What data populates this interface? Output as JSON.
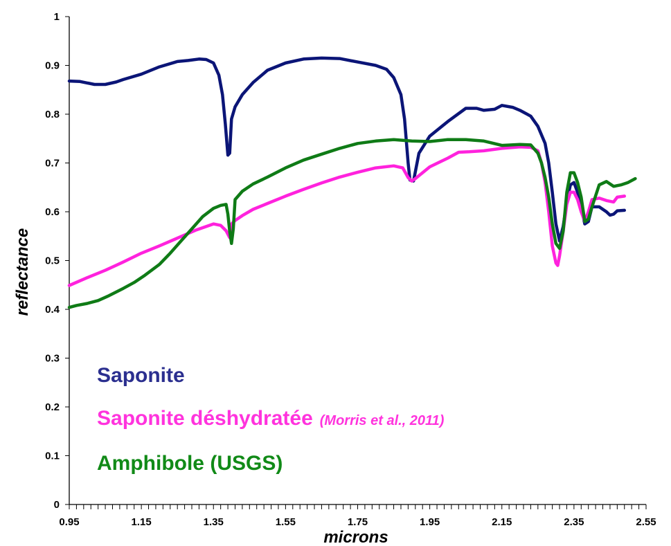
{
  "chart_data": {
    "type": "line",
    "title": "",
    "xlabel": "microns",
    "ylabel": "reflectance",
    "xlim": [
      0.95,
      2.55
    ],
    "ylim": [
      0,
      1
    ],
    "x_ticks": [
      0.95,
      1.15,
      1.35,
      1.55,
      1.75,
      1.95,
      2.15,
      2.35,
      2.55
    ],
    "x_tick_labels": [
      "0.95",
      "1.15",
      "1.35",
      "1.55",
      "1.75",
      "1.95",
      "2.15",
      "2.35",
      "2.55"
    ],
    "x_minor_step": 0.02,
    "y_ticks": [
      0,
      0.1,
      0.2,
      0.3,
      0.4,
      0.5,
      0.6,
      0.7,
      0.8,
      0.9,
      1
    ],
    "y_tick_labels": [
      "0",
      "0.1",
      "0.2",
      "0.3",
      "0.4",
      "0.5",
      "0.6",
      "0.7",
      "0.8",
      "0.9",
      "1"
    ],
    "grid": false,
    "legend_position": "bottom-left",
    "series": [
      {
        "name": "Saponite",
        "color": "#0b1577",
        "points": [
          [
            0.95,
            0.868
          ],
          [
            0.98,
            0.867
          ],
          [
            1.0,
            0.864
          ],
          [
            1.02,
            0.861
          ],
          [
            1.05,
            0.861
          ],
          [
            1.08,
            0.866
          ],
          [
            1.1,
            0.871
          ],
          [
            1.15,
            0.882
          ],
          [
            1.2,
            0.897
          ],
          [
            1.25,
            0.908
          ],
          [
            1.28,
            0.91
          ],
          [
            1.31,
            0.913
          ],
          [
            1.33,
            0.912
          ],
          [
            1.35,
            0.905
          ],
          [
            1.365,
            0.88
          ],
          [
            1.375,
            0.84
          ],
          [
            1.383,
            0.78
          ],
          [
            1.39,
            0.716
          ],
          [
            1.395,
            0.72
          ],
          [
            1.4,
            0.79
          ],
          [
            1.41,
            0.815
          ],
          [
            1.43,
            0.84
          ],
          [
            1.46,
            0.865
          ],
          [
            1.5,
            0.89
          ],
          [
            1.55,
            0.905
          ],
          [
            1.6,
            0.913
          ],
          [
            1.65,
            0.915
          ],
          [
            1.7,
            0.914
          ],
          [
            1.75,
            0.907
          ],
          [
            1.8,
            0.9
          ],
          [
            1.83,
            0.892
          ],
          [
            1.85,
            0.875
          ],
          [
            1.87,
            0.84
          ],
          [
            1.88,
            0.79
          ],
          [
            1.89,
            0.7
          ],
          [
            1.895,
            0.665
          ],
          [
            1.905,
            0.663
          ],
          [
            1.92,
            0.72
          ],
          [
            1.95,
            0.755
          ],
          [
            2.0,
            0.785
          ],
          [
            2.05,
            0.812
          ],
          [
            2.08,
            0.812
          ],
          [
            2.1,
            0.808
          ],
          [
            2.13,
            0.81
          ],
          [
            2.15,
            0.818
          ],
          [
            2.18,
            0.814
          ],
          [
            2.2,
            0.808
          ],
          [
            2.23,
            0.796
          ],
          [
            2.25,
            0.775
          ],
          [
            2.27,
            0.74
          ],
          [
            2.28,
            0.7
          ],
          [
            2.29,
            0.64
          ],
          [
            2.3,
            0.575
          ],
          [
            2.31,
            0.54
          ],
          [
            2.32,
            0.57
          ],
          [
            2.33,
            0.62
          ],
          [
            2.34,
            0.655
          ],
          [
            2.35,
            0.66
          ],
          [
            2.36,
            0.64
          ],
          [
            2.37,
            0.61
          ],
          [
            2.38,
            0.575
          ],
          [
            2.39,
            0.58
          ],
          [
            2.4,
            0.61
          ],
          [
            2.42,
            0.61
          ],
          [
            2.44,
            0.6
          ],
          [
            2.45,
            0.593
          ],
          [
            2.46,
            0.595
          ],
          [
            2.47,
            0.602
          ],
          [
            2.49,
            0.603
          ]
        ]
      },
      {
        "name": "Saponite déshydratée",
        "color": "#ff22dd",
        "points": [
          [
            0.95,
            0.449
          ],
          [
            1.0,
            0.465
          ],
          [
            1.05,
            0.48
          ],
          [
            1.1,
            0.497
          ],
          [
            1.15,
            0.515
          ],
          [
            1.2,
            0.53
          ],
          [
            1.25,
            0.546
          ],
          [
            1.3,
            0.562
          ],
          [
            1.35,
            0.575
          ],
          [
            1.37,
            0.572
          ],
          [
            1.385,
            0.561
          ],
          [
            1.395,
            0.547
          ],
          [
            1.4,
            0.575
          ],
          [
            1.41,
            0.582
          ],
          [
            1.43,
            0.592
          ],
          [
            1.46,
            0.605
          ],
          [
            1.5,
            0.617
          ],
          [
            1.55,
            0.632
          ],
          [
            1.6,
            0.646
          ],
          [
            1.65,
            0.659
          ],
          [
            1.7,
            0.671
          ],
          [
            1.75,
            0.681
          ],
          [
            1.8,
            0.69
          ],
          [
            1.85,
            0.694
          ],
          [
            1.875,
            0.69
          ],
          [
            1.89,
            0.67
          ],
          [
            1.9,
            0.663
          ],
          [
            1.91,
            0.668
          ],
          [
            1.93,
            0.68
          ],
          [
            1.95,
            0.692
          ],
          [
            2.0,
            0.71
          ],
          [
            2.03,
            0.722
          ],
          [
            2.06,
            0.723
          ],
          [
            2.1,
            0.725
          ],
          [
            2.15,
            0.73
          ],
          [
            2.2,
            0.733
          ],
          [
            2.23,
            0.732
          ],
          [
            2.25,
            0.725
          ],
          [
            2.26,
            0.7
          ],
          [
            2.27,
            0.66
          ],
          [
            2.28,
            0.6
          ],
          [
            2.29,
            0.53
          ],
          [
            2.3,
            0.495
          ],
          [
            2.305,
            0.49
          ],
          [
            2.31,
            0.51
          ],
          [
            2.32,
            0.56
          ],
          [
            2.33,
            0.615
          ],
          [
            2.34,
            0.64
          ],
          [
            2.35,
            0.64
          ],
          [
            2.36,
            0.625
          ],
          [
            2.37,
            0.6
          ],
          [
            2.38,
            0.58
          ],
          [
            2.39,
            0.6
          ],
          [
            2.4,
            0.625
          ],
          [
            2.42,
            0.628
          ],
          [
            2.44,
            0.623
          ],
          [
            2.46,
            0.62
          ],
          [
            2.47,
            0.63
          ],
          [
            2.49,
            0.632
          ]
        ]
      },
      {
        "name": "Amphibole (USGS)",
        "color": "#0f7b16",
        "points": [
          [
            0.95,
            0.404
          ],
          [
            0.97,
            0.408
          ],
          [
            1.0,
            0.412
          ],
          [
            1.03,
            0.418
          ],
          [
            1.06,
            0.428
          ],
          [
            1.1,
            0.443
          ],
          [
            1.13,
            0.455
          ],
          [
            1.16,
            0.47
          ],
          [
            1.2,
            0.492
          ],
          [
            1.23,
            0.515
          ],
          [
            1.26,
            0.54
          ],
          [
            1.29,
            0.565
          ],
          [
            1.32,
            0.59
          ],
          [
            1.35,
            0.607
          ],
          [
            1.37,
            0.613
          ],
          [
            1.385,
            0.615
          ],
          [
            1.39,
            0.595
          ],
          [
            1.395,
            0.56
          ],
          [
            1.4,
            0.535
          ],
          [
            1.405,
            0.565
          ],
          [
            1.41,
            0.625
          ],
          [
            1.43,
            0.642
          ],
          [
            1.46,
            0.657
          ],
          [
            1.5,
            0.671
          ],
          [
            1.55,
            0.69
          ],
          [
            1.6,
            0.706
          ],
          [
            1.65,
            0.718
          ],
          [
            1.7,
            0.73
          ],
          [
            1.75,
            0.74
          ],
          [
            1.8,
            0.745
          ],
          [
            1.85,
            0.748
          ],
          [
            1.9,
            0.745
          ],
          [
            1.95,
            0.744
          ],
          [
            2.0,
            0.748
          ],
          [
            2.05,
            0.748
          ],
          [
            2.1,
            0.745
          ],
          [
            2.15,
            0.736
          ],
          [
            2.2,
            0.738
          ],
          [
            2.23,
            0.737
          ],
          [
            2.25,
            0.72
          ],
          [
            2.26,
            0.7
          ],
          [
            2.27,
            0.67
          ],
          [
            2.28,
            0.63
          ],
          [
            2.29,
            0.575
          ],
          [
            2.3,
            0.535
          ],
          [
            2.31,
            0.525
          ],
          [
            2.32,
            0.56
          ],
          [
            2.33,
            0.64
          ],
          [
            2.34,
            0.68
          ],
          [
            2.35,
            0.68
          ],
          [
            2.36,
            0.66
          ],
          [
            2.37,
            0.63
          ],
          [
            2.38,
            0.58
          ],
          [
            2.39,
            0.585
          ],
          [
            2.4,
            0.61
          ],
          [
            2.42,
            0.655
          ],
          [
            2.44,
            0.662
          ],
          [
            2.46,
            0.652
          ],
          [
            2.48,
            0.655
          ],
          [
            2.5,
            0.66
          ],
          [
            2.52,
            0.668
          ]
        ]
      }
    ]
  },
  "legend": {
    "items": [
      {
        "label": "Saponite",
        "note": "",
        "color": "#2b2f8f"
      },
      {
        "label": "Saponite déshydratée",
        "note": "(Morris et al., 2011)",
        "color": "#ff33dd"
      },
      {
        "label": "Amphibole (USGS)",
        "note": "",
        "color": "#118a17"
      }
    ]
  }
}
